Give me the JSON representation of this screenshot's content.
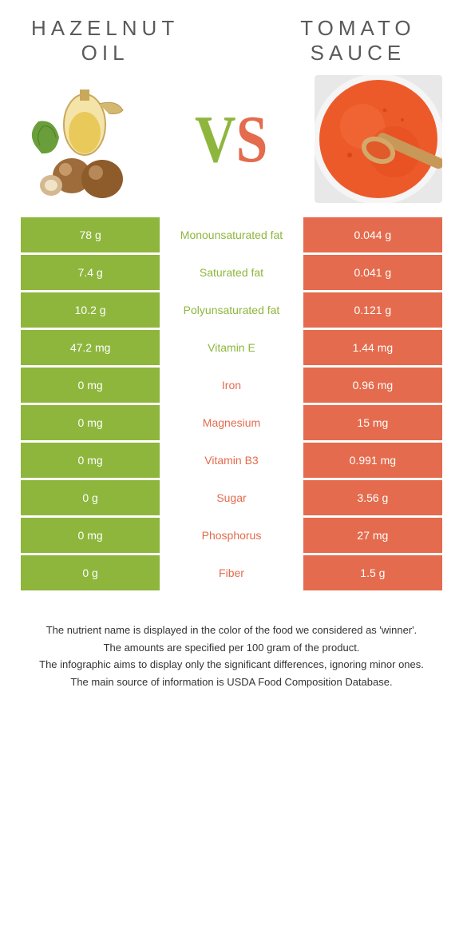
{
  "titles": {
    "left_line1": "Hazelnut",
    "left_line2": "oil",
    "right_line1": "Tomato",
    "right_line2": "sauce"
  },
  "vs": "VS",
  "colors": {
    "green": "#8eb63d",
    "orange": "#e46b4d",
    "vs_v": "#8eb63d",
    "vs_s": "#e46b4d"
  },
  "rows": [
    {
      "left": "78 g",
      "label": "Monounsaturated fat",
      "right": "0.044 g",
      "winner": "left"
    },
    {
      "left": "7.4 g",
      "label": "Saturated fat",
      "right": "0.041 g",
      "winner": "left"
    },
    {
      "left": "10.2 g",
      "label": "Polyunsaturated fat",
      "right": "0.121 g",
      "winner": "left"
    },
    {
      "left": "47.2 mg",
      "label": "Vitamin E",
      "right": "1.44 mg",
      "winner": "left"
    },
    {
      "left": "0 mg",
      "label": "Iron",
      "right": "0.96 mg",
      "winner": "right"
    },
    {
      "left": "0 mg",
      "label": "Magnesium",
      "right": "15 mg",
      "winner": "right"
    },
    {
      "left": "0 mg",
      "label": "Vitamin B3",
      "right": "0.991 mg",
      "winner": "right"
    },
    {
      "left": "0 g",
      "label": "Sugar",
      "right": "3.56 g",
      "winner": "right"
    },
    {
      "left": "0 mg",
      "label": "Phosphorus",
      "right": "27 mg",
      "winner": "right"
    },
    {
      "left": "0 g",
      "label": "Fiber",
      "right": "1.5 g",
      "winner": "right"
    }
  ],
  "footer": {
    "line1": "The nutrient name is displayed in the color of the food we considered as 'winner'.",
    "line2": "The amounts are specified per 100 gram of the product.",
    "line3": "The infographic aims to display only the significant differences, ignoring minor ones.",
    "line4": "The main source of information is USDA Food Composition Database."
  }
}
